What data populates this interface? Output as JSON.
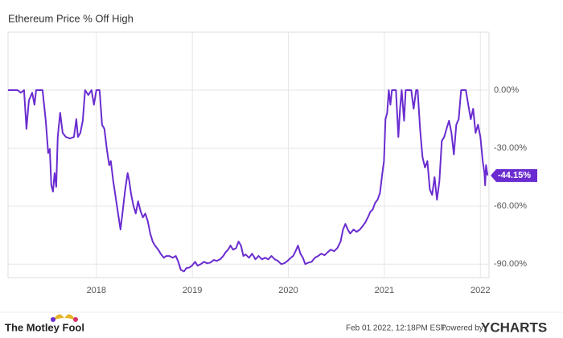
{
  "chart_data": {
    "type": "line",
    "title": "Ethereum Price % Off High",
    "x": [
      2017.08,
      2017.18,
      2017.213,
      2017.247,
      2017.272,
      2017.297,
      2017.331,
      2017.356,
      2017.372,
      2017.439,
      2017.473,
      2017.498,
      2017.515,
      2017.531,
      2017.548,
      2017.565,
      2017.582,
      2017.598,
      2017.623,
      2017.649,
      2017.682,
      2017.724,
      2017.766,
      2017.791,
      2017.808,
      2017.833,
      2017.858,
      2017.883,
      2017.916,
      2017.95,
      2017.975,
      2018.0,
      2018.033,
      2018.059,
      2018.084,
      2018.109,
      2018.134,
      2018.151,
      2018.176,
      2018.201,
      2018.226,
      2018.251,
      2018.276,
      2018.301,
      2018.326,
      2018.343,
      2018.36,
      2018.385,
      2018.41,
      2018.435,
      2018.46,
      2018.485,
      2018.51,
      2018.536,
      2018.561,
      2018.586,
      2018.611,
      2018.644,
      2018.669,
      2018.703,
      2018.728,
      2018.762,
      2018.795,
      2018.828,
      2018.854,
      2018.879,
      2018.912,
      2018.937,
      2018.971,
      2018.996,
      2019.029,
      2019.054,
      2019.088,
      2019.121,
      2019.155,
      2019.188,
      2019.222,
      2019.255,
      2019.289,
      2019.322,
      2019.347,
      2019.372,
      2019.397,
      2019.423,
      2019.456,
      2019.481,
      2019.506,
      2019.531,
      2019.556,
      2019.59,
      2019.623,
      2019.657,
      2019.69,
      2019.724,
      2019.757,
      2019.791,
      2019.824,
      2019.858,
      2019.891,
      2019.925,
      2019.958,
      2019.992,
      2020.025,
      2020.05,
      2020.075,
      2020.1,
      2020.125,
      2020.151,
      2020.176,
      2020.209,
      2020.243,
      2020.276,
      2020.31,
      2020.343,
      2020.377,
      2020.41,
      2020.443,
      2020.477,
      2020.51,
      2020.544,
      2020.569,
      2020.594,
      2020.619,
      2020.644,
      2020.678,
      2020.711,
      2020.745,
      2020.778,
      2020.803,
      2020.828,
      2020.854,
      2020.879,
      2020.904,
      2020.929,
      2020.954,
      2020.979,
      2020.996,
      2021.012,
      2021.029,
      2021.046,
      2021.063,
      2021.079,
      2021.096,
      2021.121,
      2021.146,
      2021.163,
      2021.18,
      2021.205,
      2021.222,
      2021.247,
      2021.28,
      2021.305,
      2021.331,
      2021.347,
      2021.372,
      2021.397,
      2021.423,
      2021.448,
      2021.473,
      2021.498,
      2021.523,
      2021.548,
      2021.573,
      2021.598,
      2021.623,
      2021.648,
      2021.674,
      2021.699,
      2021.724,
      2021.749,
      2021.774,
      2021.799,
      2021.824,
      2021.849,
      2021.874,
      2021.9,
      2021.925,
      2021.95,
      2021.975,
      2022.0,
      2022.025,
      2022.042,
      2022.05,
      2022.059,
      2022.075
    ],
    "series": [
      {
        "name": "Ethereum Price % Off High",
        "color": "#6a2cd0",
        "values": [
          0,
          0,
          -1.3,
          0,
          -20,
          -5.4,
          -1.3,
          -7.5,
          0,
          0,
          -15.8,
          -32.5,
          -30.4,
          -49.2,
          -52.5,
          -42.9,
          -50,
          -24.2,
          -11.7,
          -22.1,
          -24.2,
          -25,
          -24.2,
          -15,
          -24.2,
          -22.1,
          -15.8,
          0,
          -2.5,
          0,
          -7.5,
          0,
          0,
          -17.9,
          -20,
          -30.4,
          -38.8,
          -36.7,
          -47.1,
          -55.4,
          -63.8,
          -72.1,
          -61.7,
          -51.3,
          -42.9,
          -47.1,
          -53.3,
          -59.6,
          -63.8,
          -57.5,
          -62.5,
          -65.8,
          -63.8,
          -67.9,
          -74.2,
          -78.3,
          -80.4,
          -82.5,
          -84.6,
          -86.7,
          -85.8,
          -85.8,
          -86.7,
          -85.8,
          -88.8,
          -92.9,
          -93.8,
          -92.1,
          -91.7,
          -90.8,
          -88.8,
          -90.8,
          -90,
          -88.8,
          -89.6,
          -89.2,
          -87.9,
          -88.3,
          -87.5,
          -85.8,
          -83.8,
          -82.5,
          -80.4,
          -82.5,
          -81.7,
          -78.3,
          -80.4,
          -85.8,
          -85,
          -86.7,
          -84.6,
          -87.5,
          -85.8,
          -87.5,
          -86.7,
          -87.5,
          -85.8,
          -87.5,
          -88.3,
          -90,
          -89.6,
          -88.3,
          -86.7,
          -85.8,
          -83.3,
          -80.4,
          -84.6,
          -86.7,
          -90,
          -89.2,
          -88.8,
          -86.7,
          -85.8,
          -84.6,
          -85.4,
          -83.8,
          -82.5,
          -83.3,
          -81.7,
          -78.3,
          -72.1,
          -69.2,
          -72.1,
          -74.2,
          -72.1,
          -73.3,
          -72.1,
          -70,
          -68.3,
          -65.8,
          -62.9,
          -61.7,
          -58.3,
          -56.7,
          -53.3,
          -42.9,
          -36.7,
          -15,
          -11.7,
          0,
          -7.5,
          0,
          0,
          0,
          -24.2,
          -9.6,
          0,
          -15.8,
          0,
          0,
          0,
          -9.6,
          0,
          0,
          -20,
          -34.6,
          -40,
          -36.7,
          -51.3,
          -54.2,
          -45,
          -56.7,
          -47.1,
          -26.3,
          -24.2,
          -20,
          -15.8,
          -22.1,
          -33.3,
          -17.9,
          -15,
          0,
          0,
          0,
          -7.5,
          -15,
          -9.6,
          -22.1,
          -17.9,
          -24.2,
          -36.7,
          -42.9,
          -49.2,
          -38.8,
          -44.15
        ]
      }
    ],
    "xlim": [
      2017.08,
      2022.09
    ],
    "xticks": [
      2018,
      2019,
      2020,
      2021,
      2022
    ],
    "ylim": [
      -97,
      30
    ],
    "yticks": [
      {
        "value": 0,
        "label": "0.00%"
      },
      {
        "value": -30,
        "label": "-30.00%"
      },
      {
        "value": -60,
        "label": "-60.00%"
      },
      {
        "value": -90,
        "label": "-90.00%"
      }
    ],
    "grid": true,
    "last_value": {
      "value": -44.15,
      "label": "-44.15%"
    }
  },
  "footer": {
    "logo_text": "The Motley Fool",
    "timestamp": "Feb 01 2022, 12:18PM EST.",
    "powered_by": "Powered by",
    "brand": "YCHARTS"
  }
}
